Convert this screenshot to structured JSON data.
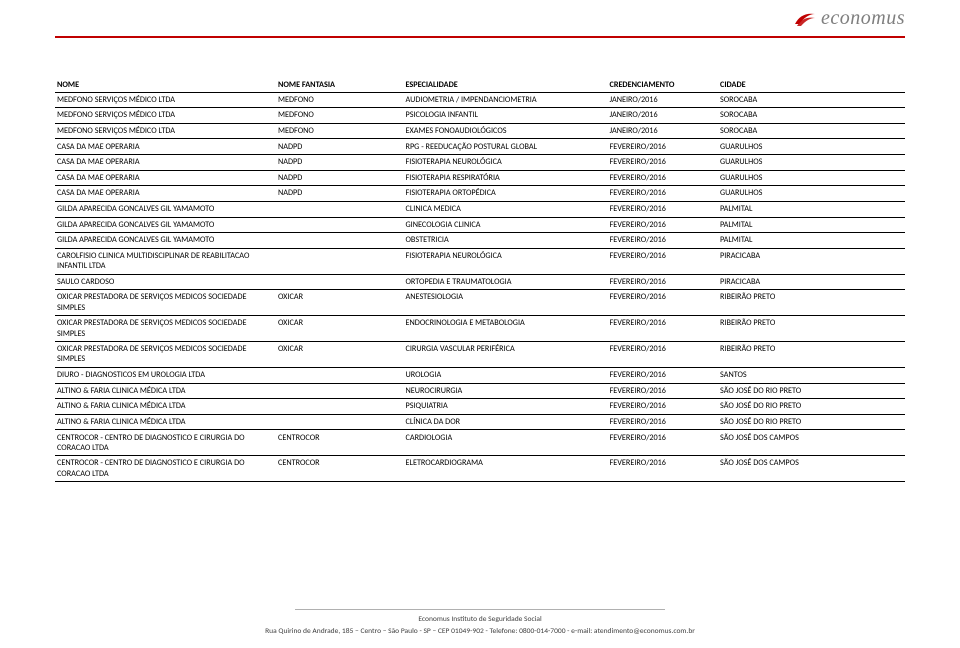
{
  "logo": {
    "text": "economus",
    "swoosh_color": "#c00000",
    "text_color": "#7f7f7f"
  },
  "columns": [
    "NOME",
    "NOME FANTASIA",
    "ESPECIALIDADE",
    "CREDENCIAMENTO",
    "CIDADE"
  ],
  "rows": [
    [
      "MEDFONO SERVIÇOS MÉDICO LTDA",
      "MEDFONO",
      "AUDIOMETRIA / IMPENDANCIOMETRIA",
      "JANEIRO/2016",
      "SOROCABA"
    ],
    [
      "MEDFONO SERVIÇOS MÉDICO LTDA",
      "MEDFONO",
      "PSICOLOGIA INFANTIL",
      "JANEIRO/2016",
      "SOROCABA"
    ],
    [
      "MEDFONO SERVIÇOS MÉDICO LTDA",
      "MEDFONO",
      "EXAMES FONOAUDIOLÓGICOS",
      "JANEIRO/2016",
      "SOROCABA"
    ],
    [
      "CASA DA MAE OPERARIA",
      "NADPD",
      "RPG - REEDUCAÇÃO POSTURAL GLOBAL",
      "FEVEREIRO/2016",
      "GUARULHOS"
    ],
    [
      "CASA DA MAE OPERARIA",
      "NADPD",
      "FISIOTERAPIA NEUROLÓGICA",
      "FEVEREIRO/2016",
      "GUARULHOS"
    ],
    [
      "CASA DA MAE OPERARIA",
      "NADPD",
      "FISIOTERAPIA RESPIRATÓRIA",
      "FEVEREIRO/2016",
      "GUARULHOS"
    ],
    [
      "CASA DA MAE OPERARIA",
      "NADPD",
      "FISIOTERAPIA ORTOPÉDICA",
      "FEVEREIRO/2016",
      "GUARULHOS"
    ],
    [
      "GILDA APARECIDA GONCALVES GIL YAMAMOTO",
      "",
      "CLINICA MEDICA",
      "FEVEREIRO/2016",
      "PALMITAL"
    ],
    [
      "GILDA APARECIDA GONCALVES GIL YAMAMOTO",
      "",
      "GINECOLOGIA CLINICA",
      "FEVEREIRO/2016",
      "PALMITAL"
    ],
    [
      "GILDA APARECIDA GONCALVES GIL YAMAMOTO",
      "",
      "OBSTETRICIA",
      "FEVEREIRO/2016",
      "PALMITAL"
    ],
    [
      "CAROLFISIO CLINICA MULTIDISCIPLINAR DE REABILITACAO INFANTIL LTDA",
      "",
      "FISIOTERAPIA NEUROLÓGICA",
      "FEVEREIRO/2016",
      "PIRACICABA"
    ],
    [
      "SAULO CARDOSO",
      "",
      "ORTOPEDIA E TRAUMATOLOGIA",
      "FEVEREIRO/2016",
      "PIRACICABA"
    ],
    [
      "OXICAR PRESTADORA DE SERVIÇOS MEDICOS SOCIEDADE SIMPLES",
      "OXICAR",
      "ANESTESIOLOGIA",
      "FEVEREIRO/2016",
      "RIBEIRÃO PRETO"
    ],
    [
      "OXICAR PRESTADORA DE SERVIÇOS MEDICOS SOCIEDADE SIMPLES",
      "OXICAR",
      "ENDOCRINOLOGIA E METABOLOGIA",
      "FEVEREIRO/2016",
      "RIBEIRÃO PRETO"
    ],
    [
      "OXICAR PRESTADORA DE SERVIÇOS MEDICOS SOCIEDADE SIMPLES",
      "OXICAR",
      "CIRURGIA VASCULAR PERIFÉRICA",
      "FEVEREIRO/2016",
      "RIBEIRÃO PRETO"
    ],
    [
      "DIURO - DIAGNOSTICOS EM UROLOGIA LTDA",
      "",
      "UROLOGIA",
      "FEVEREIRO/2016",
      "SANTOS"
    ],
    [
      "ALTINO & FARIA CLINICA MÉDICA LTDA",
      "",
      "NEUROCIRURGIA",
      " FEVEREIRO/2016",
      "SÃO JOSÉ DO RIO PRETO"
    ],
    [
      "ALTINO & FARIA CLINICA MÉDICA LTDA",
      "",
      "PSIQUIATRIA",
      "FEVEREIRO/2016",
      "SÃO JOSÉ DO RIO PRETO"
    ],
    [
      "ALTINO & FARIA CLINICA MÉDICA LTDA",
      "",
      "CLÍNICA DA DOR",
      "FEVEREIRO/2016",
      "SÃO JOSÉ DO RIO PRETO"
    ],
    [
      "CENTROCOR - CENTRO DE DIAGNOSTICO E CIRURGIA DO CORACAO LTDA",
      "CENTROCOR",
      "CARDIOLOGIA",
      "FEVEREIRO/2016",
      "SÃO JOSÉ DOS CAMPOS"
    ],
    [
      "CENTROCOR - CENTRO DE DIAGNOSTICO E CIRURGIA DO CORACAO LTDA",
      "CENTROCOR",
      "ELETROCARDIOGRAMA",
      "FEVEREIRO/2016",
      "SÃO JOSÉ DOS CAMPOS"
    ]
  ],
  "multi_rows": [
    10,
    12,
    13,
    14,
    19,
    20
  ],
  "footer": {
    "line1": "Economus Instituto de Seguridade Social",
    "line2": "Rua Quirino de Andrade, 185 – Centro – São Paulo - SP – CEP 01049-902 - Telefone: 0800-014-7000 - e-mail: atendimento@economus.com.br"
  }
}
